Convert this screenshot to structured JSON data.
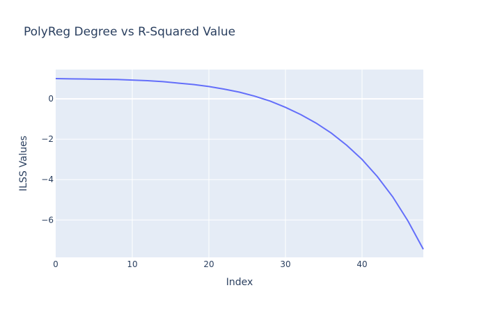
{
  "chart_data": {
    "type": "line",
    "title": "PolyReg Degree vs R-Squared Value",
    "xlabel": "Index",
    "ylabel": "ILSS Values",
    "xlim": [
      0,
      48
    ],
    "ylim": [
      -7.85,
      1.45
    ],
    "xticks": [
      0,
      10,
      20,
      30,
      40
    ],
    "xtick_labels": [
      "0",
      "10",
      "20",
      "30",
      "40"
    ],
    "yticks": [
      0,
      -2,
      -4,
      -6
    ],
    "ytick_labels": [
      "0",
      "−2",
      "−4",
      "−6"
    ],
    "grid": true,
    "legend": "none",
    "series": [
      {
        "x": [
          0,
          2,
          4,
          6,
          8,
          10,
          12,
          14,
          16,
          18,
          20,
          22,
          24,
          26,
          28,
          30,
          32,
          34,
          36,
          38,
          40,
          42,
          44,
          46,
          48
        ],
        "y": [
          1.0,
          0.99,
          0.98,
          0.97,
          0.96,
          0.93,
          0.9,
          0.85,
          0.78,
          0.71,
          0.61,
          0.48,
          0.33,
          0.13,
          -0.11,
          -0.42,
          -0.78,
          -1.2,
          -1.7,
          -2.3,
          -3.0,
          -3.85,
          -4.85,
          -6.05,
          -7.45
        ]
      }
    ],
    "colors": {
      "line": "#636efa",
      "plot_bg": "#e5ecf6",
      "grid": "#ffffff",
      "text": "#2a3f5f"
    }
  }
}
